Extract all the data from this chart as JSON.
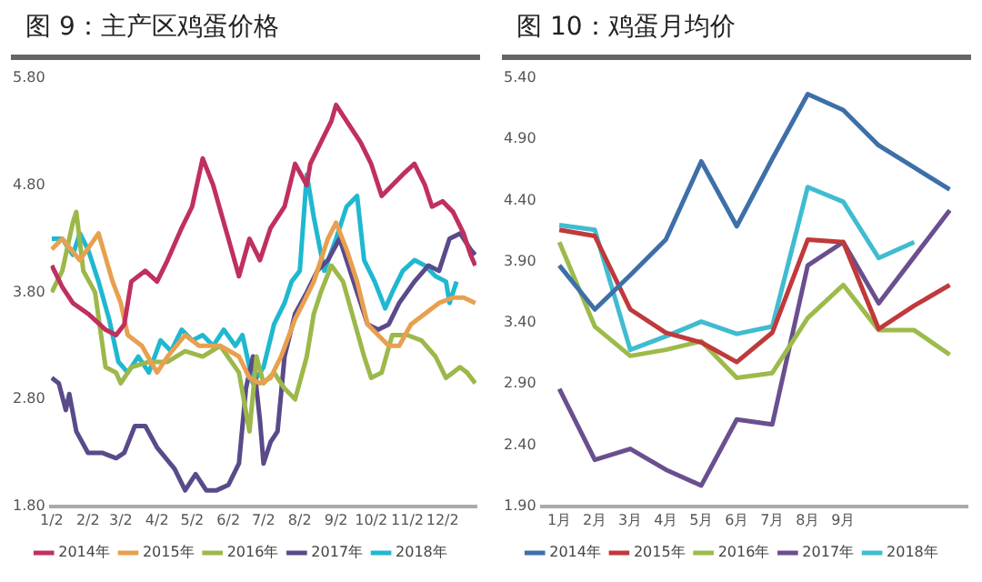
{
  "chart_data": [
    {
      "type": "line",
      "title": "图 9：主产区鸡蛋价格",
      "legend": "bottom",
      "grid": false,
      "xlim": [
        "--01-01",
        "--12-31"
      ],
      "xticks": [
        {
          "value": "--01-02",
          "label": "1/2"
        },
        {
          "value": "--02-02",
          "label": "2/2"
        },
        {
          "value": "--03-02",
          "label": "3/2"
        },
        {
          "value": "--04-02",
          "label": "4/2"
        },
        {
          "value": "--05-02",
          "label": "5/2"
        },
        {
          "value": "--06-02",
          "label": "6/2"
        },
        {
          "value": "--07-02",
          "label": "7/2"
        },
        {
          "value": "--08-02",
          "label": "8/2"
        },
        {
          "value": "--09-02",
          "label": "9/2"
        },
        {
          "value": "--10-02",
          "label": "10/2"
        },
        {
          "value": "--11-02",
          "label": "11/2"
        },
        {
          "value": "--12-02",
          "label": "12/2"
        }
      ],
      "ylim": [
        1.8,
        5.8
      ],
      "yticks": [
        {
          "value": 1.8,
          "label": "1.80"
        },
        {
          "value": 2.8,
          "label": "2.80"
        },
        {
          "value": 3.8,
          "label": "3.80"
        },
        {
          "value": 4.8,
          "label": "4.80"
        },
        {
          "value": 5.8,
          "label": "5.80"
        }
      ],
      "series": [
        {
          "name": "2014年",
          "color": "#c0305f",
          "x": [
            "--01-02",
            "--01-11",
            "--01-20",
            "--02-02",
            "--02-17",
            "--02-26",
            "--03-05",
            "--03-11",
            "--03-23",
            "--04-02",
            "--04-11",
            "--04-23",
            "--05-02",
            "--05-11",
            "--05-20",
            "--06-02",
            "--06-11",
            "--06-20",
            "--06-29",
            "--07-08",
            "--07-20",
            "--07-29",
            "--08-08",
            "--08-11",
            "--08-20",
            "--08-29",
            "--09-02",
            "--09-11",
            "--09-23",
            "--10-02",
            "--10-11",
            "--10-20",
            "--10-29",
            "--11-08",
            "--11-17",
            "--11-23",
            "--12-02",
            "--12-11",
            "--12-20",
            "--12-26",
            "--12-30"
          ],
          "values": [
            4.05,
            3.85,
            3.7,
            3.6,
            3.45,
            3.4,
            3.5,
            3.9,
            4,
            3.9,
            4.1,
            4.4,
            4.6,
            5.05,
            4.8,
            4.3,
            3.95,
            4.3,
            4.1,
            4.4,
            4.6,
            5,
            4.8,
            5,
            5.2,
            5.4,
            5.55,
            5.4,
            5.2,
            5,
            4.7,
            4.8,
            4.9,
            5,
            4.8,
            4.6,
            4.65,
            4.55,
            4.35,
            4.15,
            4.05
          ]
        },
        {
          "name": "2015年",
          "color": "#e8a050",
          "x": [
            "--01-02",
            "--01-11",
            "--01-26",
            "--02-11",
            "--02-23",
            "--03-02",
            "--03-08",
            "--03-20",
            "--04-02",
            "--04-11",
            "--04-26",
            "--05-08",
            "--05-26",
            "--06-11",
            "--06-20",
            "--06-29",
            "--07-08",
            "--07-17",
            "--07-29",
            "--08-05",
            "--08-14",
            "--08-20",
            "--08-26",
            "--09-02",
            "--09-11",
            "--09-20",
            "--09-29",
            "--10-08",
            "--10-17",
            "--10-26",
            "--11-05",
            "--11-17",
            "--11-29",
            "--12-11",
            "--12-20",
            "--12-30"
          ],
          "values": [
            4.2,
            4.3,
            4.1,
            4.35,
            3.9,
            3.7,
            3.4,
            3.3,
            3.05,
            3.2,
            3.4,
            3.3,
            3.3,
            3.2,
            3,
            2.95,
            3,
            3.2,
            3.55,
            3.7,
            3.9,
            4.1,
            4.3,
            4.45,
            4.2,
            3.9,
            3.5,
            3.4,
            3.3,
            3.3,
            3.5,
            3.6,
            3.7,
            3.75,
            3.75,
            3.7
          ]
        },
        {
          "name": "2016年",
          "color": "#9cb84a",
          "x": [
            "--01-02",
            "--01-11",
            "--01-20",
            "--01-23",
            "--01-29",
            "--02-08",
            "--02-17",
            "--02-26",
            "--03-02",
            "--03-11",
            "--03-26",
            "--04-11",
            "--04-26",
            "--05-11",
            "--05-26",
            "--06-11",
            "--06-20",
            "--06-26",
            "--07-02",
            "--07-11",
            "--07-20",
            "--07-29",
            "--08-08",
            "--08-14",
            "--08-20",
            "--08-29",
            "--09-08",
            "--09-17",
            "--09-26",
            "--10-02",
            "--10-11",
            "--10-20",
            "--11-02",
            "--11-14",
            "--11-26",
            "--12-05",
            "--12-17",
            "--12-23",
            "--12-30"
          ],
          "values": [
            3.8,
            4,
            4.45,
            4.55,
            4,
            3.8,
            3.1,
            3.05,
            2.95,
            3.1,
            3.15,
            3.15,
            3.25,
            3.2,
            3.3,
            3.05,
            2.5,
            3.2,
            2.95,
            3.05,
            2.9,
            2.8,
            3.2,
            3.6,
            3.8,
            4.05,
            3.9,
            3.55,
            3.2,
            3,
            3.05,
            3.4,
            3.4,
            3.35,
            3.2,
            3,
            3.1,
            3.05,
            2.95
          ]
        },
        {
          "name": "2017年",
          "color": "#5a4a8a",
          "x": [
            "--01-02",
            "--01-08",
            "--01-14",
            "--01-17",
            "--01-23",
            "--02-02",
            "--02-14",
            "--02-26",
            "--03-05",
            "--03-14",
            "--03-23",
            "--04-02",
            "--04-17",
            "--04-26",
            "--05-05",
            "--05-14",
            "--05-23",
            "--06-02",
            "--06-11",
            "--06-17",
            "--06-23",
            "--06-29",
            "--07-02",
            "--07-08",
            "--07-14",
            "--07-20",
            "--07-29",
            "--08-08",
            "--08-17",
            "--08-26",
            "--09-05",
            "--09-11",
            "--09-20",
            "--09-29",
            "--10-08",
            "--10-17",
            "--10-26",
            "--11-08",
            "--11-20",
            "--11-29",
            "--12-08",
            "--12-17",
            "--12-26",
            "--12-30"
          ],
          "values": [
            3,
            2.95,
            2.7,
            2.85,
            2.5,
            2.3,
            2.3,
            2.25,
            2.3,
            2.55,
            2.55,
            2.35,
            2.15,
            1.95,
            2.1,
            1.95,
            1.95,
            2,
            2.2,
            2.9,
            3.2,
            2.6,
            2.2,
            2.4,
            2.5,
            3.2,
            3.6,
            3.8,
            4,
            4.1,
            4.3,
            4.1,
            3.8,
            3.5,
            3.45,
            3.5,
            3.7,
            3.9,
            4.05,
            4,
            4.3,
            4.35,
            4.2,
            4.15
          ]
        },
        {
          "name": "2018年",
          "color": "#1fb8d0",
          "x": [
            "--01-02",
            "--01-11",
            "--01-20",
            "--01-26",
            "--02-02",
            "--02-11",
            "--02-20",
            "--02-28",
            "--03-08",
            "--03-17",
            "--03-26",
            "--04-05",
            "--04-14",
            "--04-23",
            "--05-02",
            "--05-11",
            "--05-20",
            "--05-29",
            "--06-08",
            "--06-14",
            "--06-23",
            "--07-02",
            "--07-11",
            "--07-20",
            "--07-26",
            "--08-02",
            "--08-08",
            "--08-14",
            "--08-23",
            "--09-02",
            "--09-11",
            "--09-20",
            "--09-26",
            "--10-05",
            "--10-14",
            "--10-20",
            "--10-29",
            "--11-08",
            "--11-17",
            "--11-26",
            "--12-05",
            "--12-08",
            "--12-14"
          ],
          "values": [
            4.3,
            4.3,
            4.15,
            4.35,
            4.2,
            3.9,
            3.55,
            3.15,
            3.05,
            3.2,
            3.05,
            3.35,
            3.25,
            3.45,
            3.35,
            3.4,
            3.3,
            3.45,
            3.3,
            3.4,
            2.95,
            3.1,
            3.5,
            3.7,
            3.9,
            4,
            4.9,
            4.5,
            4,
            4.3,
            4.6,
            4.7,
            4.1,
            3.9,
            3.65,
            3.8,
            4,
            4.1,
            4.05,
            3.95,
            3.9,
            3.7,
            3.9
          ]
        }
      ]
    },
    {
      "type": "line",
      "title": "图 10：鸡蛋月均价",
      "legend": "bottom",
      "grid": false,
      "categories": [
        "1月",
        "2月",
        "3月",
        "4月",
        "5月",
        "6月",
        "7月",
        "8月",
        "9月",
        null,
        null,
        null
      ],
      "ylim": [
        1.9,
        5.4
      ],
      "yticks": [
        {
          "value": 1.9,
          "label": "1.90"
        },
        {
          "value": 2.4,
          "label": "2.40"
        },
        {
          "value": 2.9,
          "label": "2.90"
        },
        {
          "value": 3.4,
          "label": "3.40"
        },
        {
          "value": 3.9,
          "label": "3.90"
        },
        {
          "value": 4.4,
          "label": "4.40"
        },
        {
          "value": 4.9,
          "label": "4.90"
        },
        {
          "value": 5.4,
          "label": "5.40"
        }
      ],
      "series": [
        {
          "name": "2014年",
          "color": "#3e6fa8",
          "values": [
            3.87,
            3.51,
            3.79,
            4.08,
            4.72,
            4.19,
            4.74,
            5.27,
            5.14,
            4.85,
            4.67,
            4.49
          ]
        },
        {
          "name": "2015年",
          "color": "#c0393b",
          "values": [
            4.16,
            4.11,
            3.51,
            3.32,
            3.24,
            3.08,
            3.32,
            4.08,
            4.06,
            3.35,
            3.54,
            3.71
          ]
        },
        {
          "name": "2016年",
          "color": "#9cbb4a",
          "values": [
            4.06,
            3.37,
            3.13,
            3.18,
            3.25,
            2.95,
            2.99,
            3.44,
            3.71,
            3.34,
            3.34,
            3.14
          ]
        },
        {
          "name": "2017年",
          "color": "#6a4f8f",
          "values": [
            2.86,
            2.28,
            2.37,
            2.2,
            2.07,
            2.61,
            2.57,
            3.87,
            4.06,
            3.56,
            3.94,
            4.32
          ]
        },
        {
          "name": "2018年",
          "color": "#3fbcd0",
          "values": [
            4.2,
            4.16,
            3.18,
            3.29,
            3.41,
            3.31,
            3.37,
            4.51,
            4.39,
            3.93,
            4.06,
            null
          ]
        }
      ]
    }
  ]
}
